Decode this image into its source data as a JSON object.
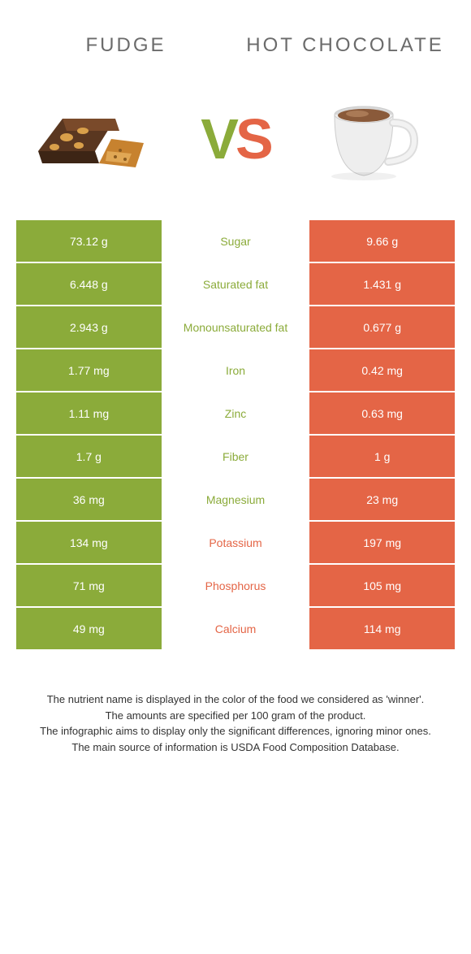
{
  "colors": {
    "green": "#8bab3a",
    "orange": "#e46546",
    "mid_green_text": "#8bab3a",
    "mid_orange_text": "#e46546",
    "title_gray": "#6b6b6b"
  },
  "left_title": "FUDGE",
  "right_title": "HOT CHOCOLATE",
  "vs_v": "V",
  "vs_s": "S",
  "rows": [
    {
      "left": "73.12 g",
      "label": "Sugar",
      "right": "9.66 g",
      "winner": "left"
    },
    {
      "left": "6.448 g",
      "label": "Saturated fat",
      "right": "1.431 g",
      "winner": "left"
    },
    {
      "left": "2.943 g",
      "label": "Monounsaturated fat",
      "right": "0.677 g",
      "winner": "left"
    },
    {
      "left": "1.77 mg",
      "label": "Iron",
      "right": "0.42 mg",
      "winner": "left"
    },
    {
      "left": "1.11 mg",
      "label": "Zinc",
      "right": "0.63 mg",
      "winner": "left"
    },
    {
      "left": "1.7 g",
      "label": "Fiber",
      "right": "1 g",
      "winner": "left"
    },
    {
      "left": "36 mg",
      "label": "Magnesium",
      "right": "23 mg",
      "winner": "left"
    },
    {
      "left": "134 mg",
      "label": "Potassium",
      "right": "197 mg",
      "winner": "right"
    },
    {
      "left": "71 mg",
      "label": "Phosphorus",
      "right": "105 mg",
      "winner": "right"
    },
    {
      "left": "49 mg",
      "label": "Calcium",
      "right": "114 mg",
      "winner": "right"
    }
  ],
  "footnotes": [
    "The nutrient name is displayed in the color of the food we considered as 'winner'.",
    "The amounts are specified per 100 gram of the product.",
    "The infographic aims to display only the significant differences, ignoring minor ones.",
    "The main source of information is USDA Food Composition Database."
  ]
}
